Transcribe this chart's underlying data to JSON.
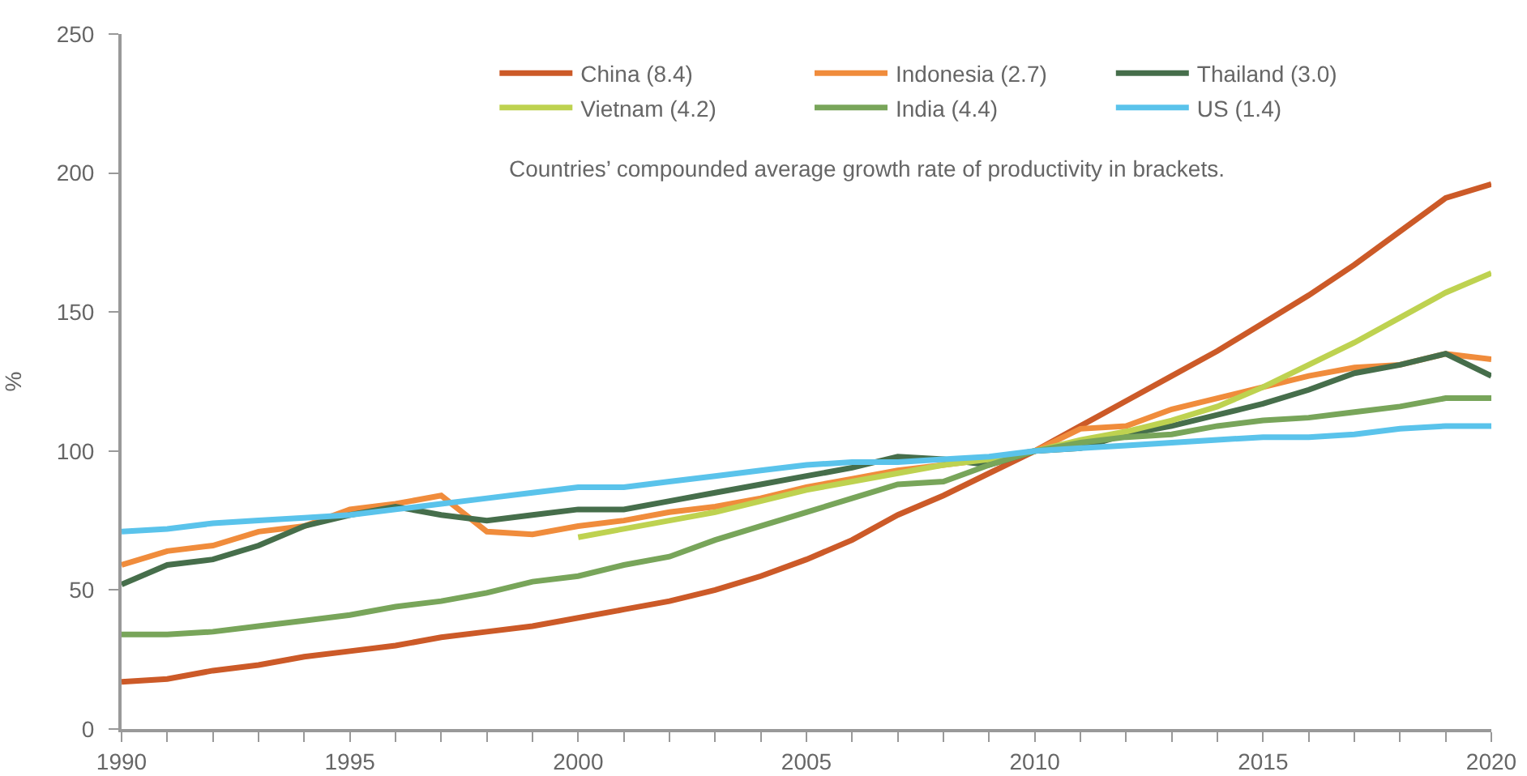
{
  "chart_data": {
    "type": "line",
    "ylabel": "%",
    "x": [
      1990,
      1991,
      1992,
      1993,
      1994,
      1995,
      1996,
      1997,
      1998,
      1999,
      2000,
      2001,
      2002,
      2003,
      2004,
      2005,
      2006,
      2007,
      2008,
      2009,
      2010,
      2011,
      2012,
      2013,
      2014,
      2015,
      2016,
      2017,
      2018,
      2019,
      2020
    ],
    "series": [
      {
        "name": "China (8.4)",
        "color": "#cc5a28",
        "values": [
          17,
          18,
          21,
          23,
          26,
          28,
          30,
          33,
          35,
          37,
          40,
          43,
          46,
          50,
          55,
          61,
          68,
          77,
          84,
          92,
          100,
          109,
          118,
          127,
          136,
          146,
          156,
          167,
          179,
          191,
          196
        ]
      },
      {
        "name": "Indonesia (2.7)",
        "color": "#f08c3c",
        "values": [
          59,
          64,
          66,
          71,
          73,
          79,
          81,
          84,
          71,
          70,
          73,
          75,
          78,
          80,
          83,
          87,
          90,
          93,
          95,
          97,
          100,
          108,
          109,
          115,
          119,
          123,
          127,
          130,
          131,
          135,
          133
        ]
      },
      {
        "name": "Thailand (3.0)",
        "color": "#466e4b",
        "values": [
          52,
          59,
          61,
          66,
          73,
          77,
          80,
          77,
          75,
          77,
          79,
          79,
          82,
          85,
          88,
          91,
          94,
          98,
          97,
          95,
          100,
          101,
          106,
          109,
          113,
          117,
          122,
          128,
          131,
          135,
          127
        ]
      },
      {
        "name": "Vietnam (4.2)",
        "color": "#bed250",
        "values": [
          null,
          null,
          null,
          null,
          null,
          null,
          null,
          null,
          null,
          null,
          69,
          72,
          75,
          78,
          82,
          86,
          89,
          92,
          95,
          97,
          100,
          104,
          107,
          111,
          116,
          123,
          131,
          139,
          148,
          157,
          164
        ]
      },
      {
        "name": "India (4.4)",
        "color": "#78a55a",
        "values": [
          34,
          34,
          35,
          37,
          39,
          41,
          44,
          46,
          49,
          53,
          55,
          59,
          62,
          68,
          73,
          78,
          83,
          88,
          89,
          95,
          100,
          103,
          105,
          106,
          109,
          111,
          112,
          114,
          116,
          119,
          119
        ]
      },
      {
        "name": "US (1.4)",
        "color": "#5ac3eb",
        "values": [
          71,
          72,
          74,
          75,
          76,
          77,
          79,
          81,
          83,
          85,
          87,
          87,
          89,
          91,
          93,
          95,
          96,
          96,
          97,
          98,
          100,
          101,
          102,
          103,
          104,
          105,
          105,
          106,
          108,
          109,
          109
        ]
      }
    ],
    "xlim": [
      1990,
      2020
    ],
    "xticks": [
      1990,
      {
        "value": 1991,
        "label": null
      },
      {
        "value": 1992,
        "label": null
      },
      {
        "value": 1993,
        "label": null
      },
      {
        "value": 1994,
        "label": null
      },
      1995,
      {
        "value": 1996,
        "label": null
      },
      {
        "value": 1997,
        "label": null
      },
      {
        "value": 1998,
        "label": null
      },
      {
        "value": 1999,
        "label": null
      },
      2000,
      {
        "value": 2001,
        "label": null
      },
      {
        "value": 2002,
        "label": null
      },
      {
        "value": 2003,
        "label": null
      },
      {
        "value": 2004,
        "label": null
      },
      2005,
      {
        "value": 2006,
        "label": null
      },
      {
        "value": 2007,
        "label": null
      },
      {
        "value": 2008,
        "label": null
      },
      {
        "value": 2009,
        "label": null
      },
      2010,
      {
        "value": 2011,
        "label": null
      },
      {
        "value": 2012,
        "label": null
      },
      {
        "value": 2013,
        "label": null
      },
      {
        "value": 2014,
        "label": null
      },
      2015,
      {
        "value": 2016,
        "label": null
      },
      {
        "value": 2017,
        "label": null
      },
      {
        "value": 2018,
        "label": null
      },
      {
        "value": 2019,
        "label": null
      },
      2020
    ],
    "ylim": [
      0,
      250
    ],
    "yticks": [
      0,
      50,
      100,
      150,
      200,
      250
    ],
    "grid": false,
    "legend": "top",
    "marker": "none",
    "line_style": "solid",
    "annotations": [
      "Countries’ compounded average growth rate of productivity in brackets."
    ]
  }
}
